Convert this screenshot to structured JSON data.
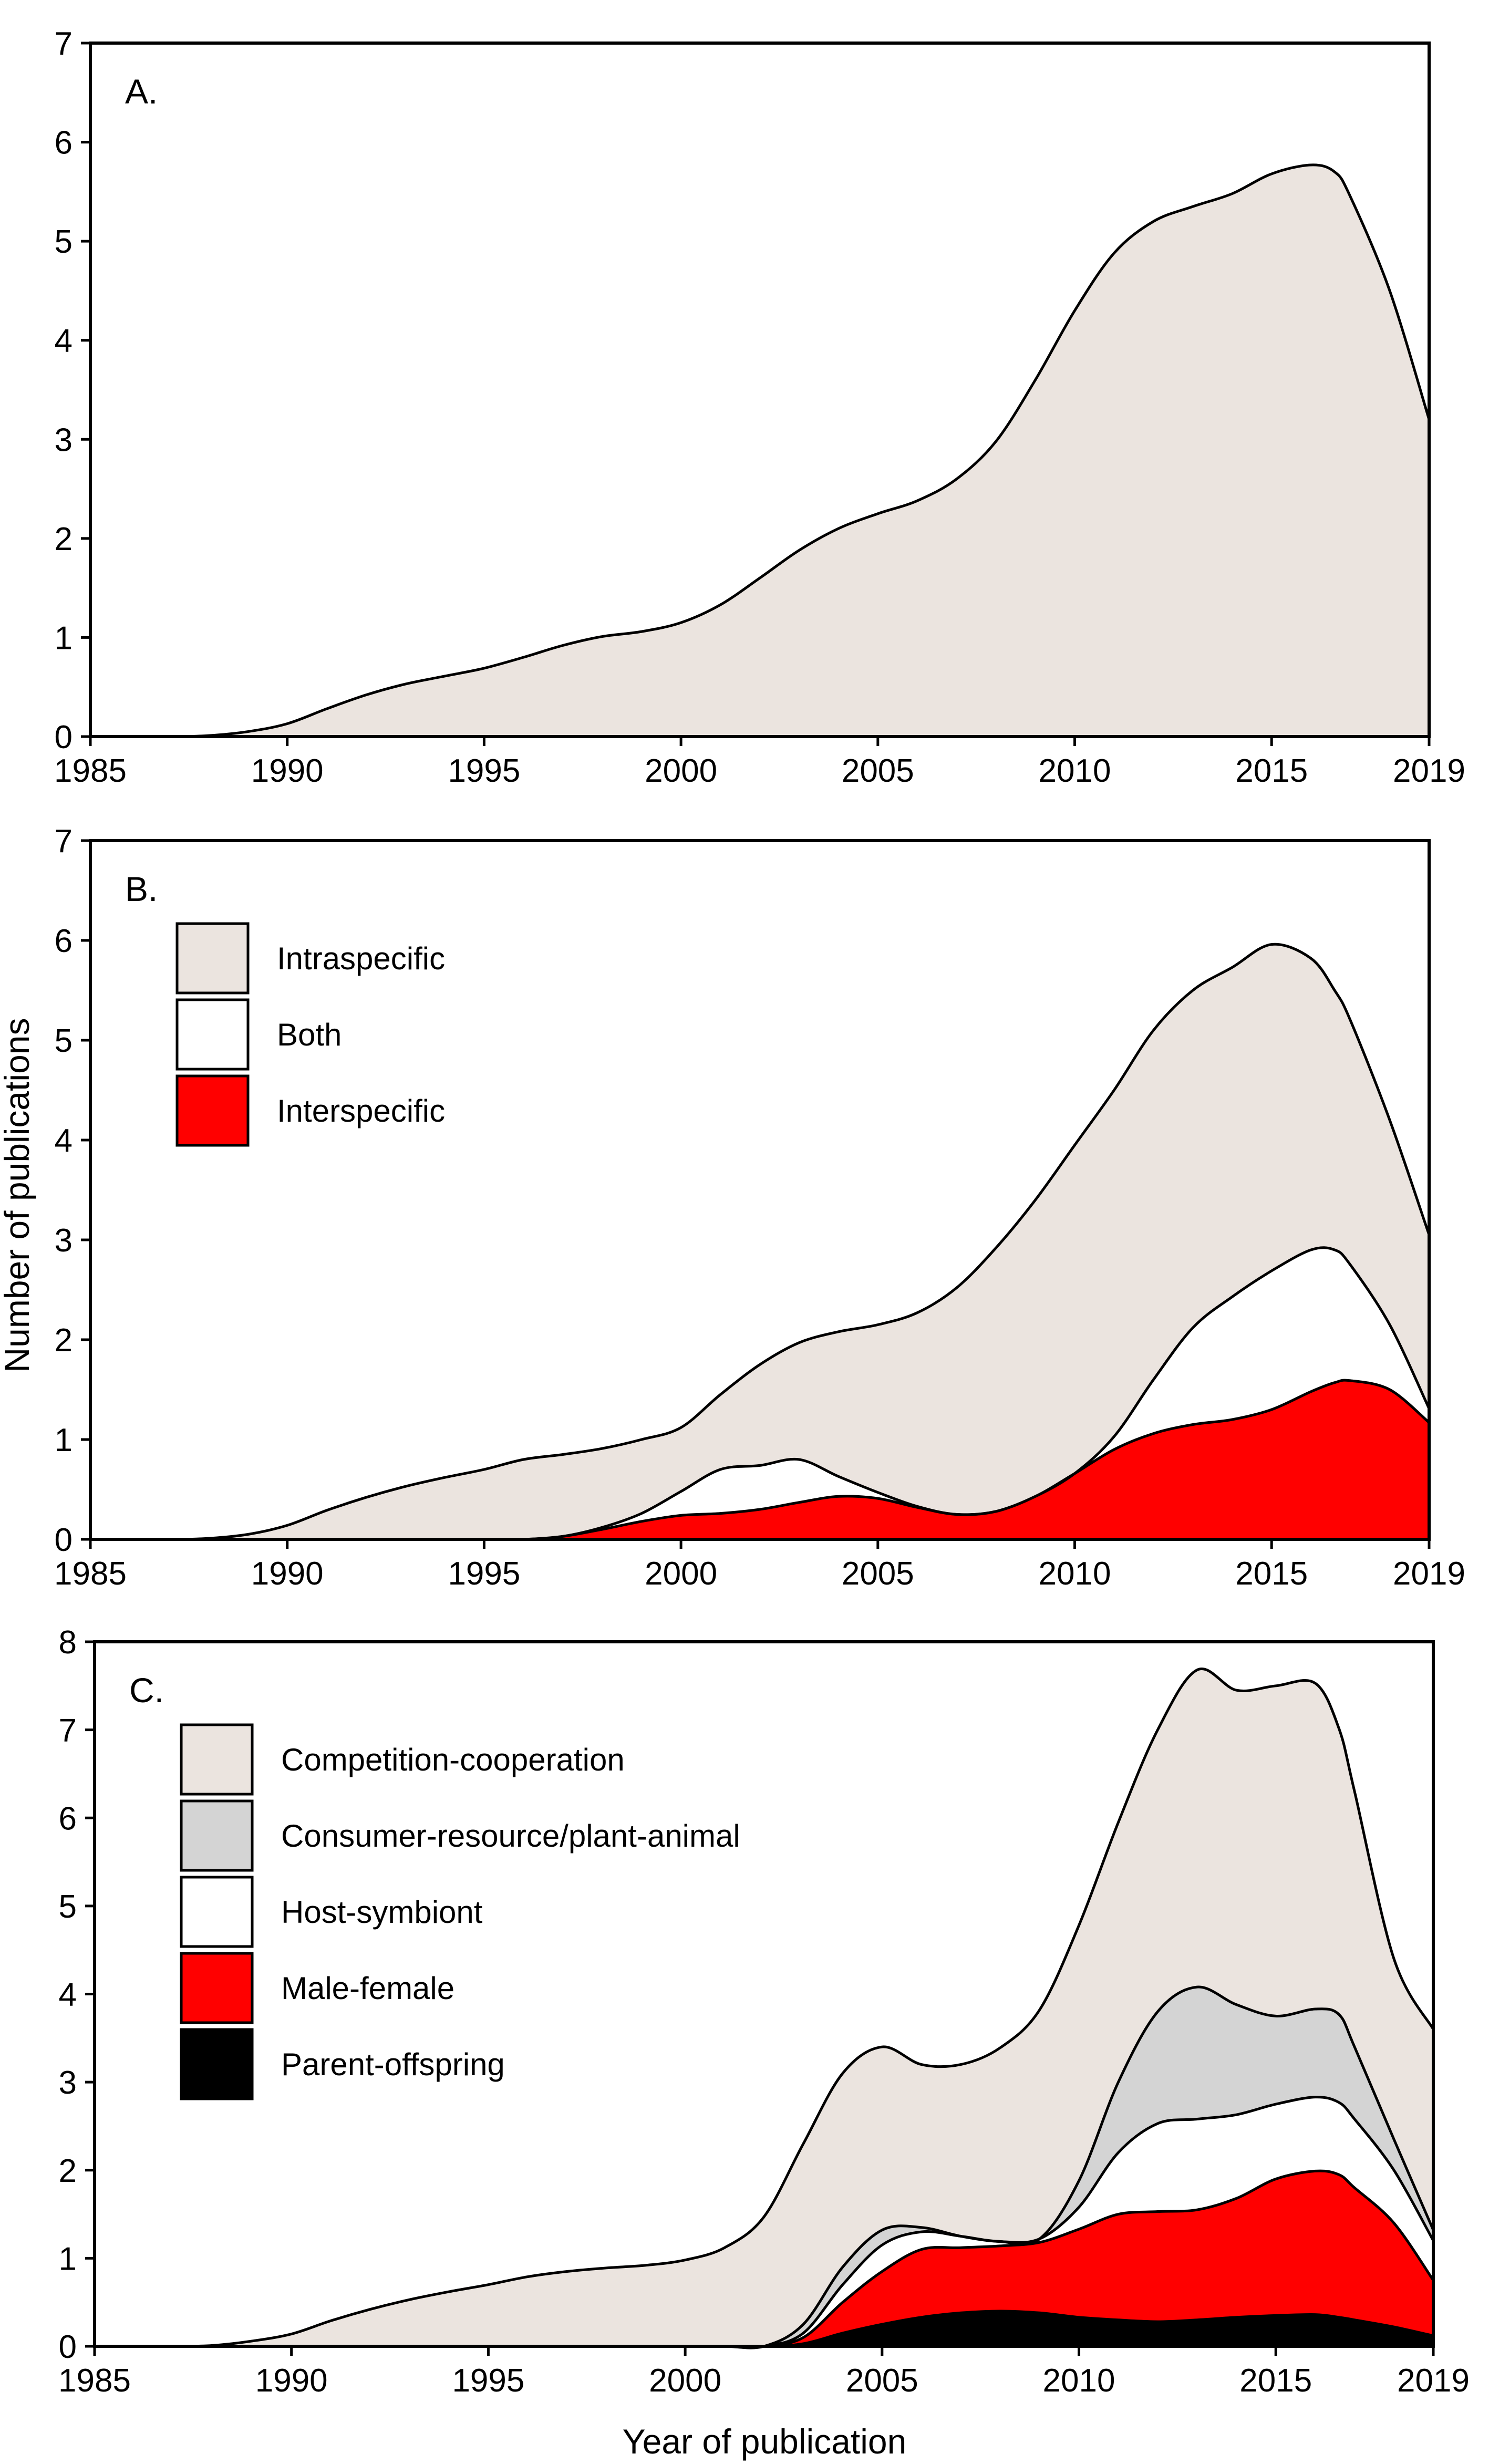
{
  "colors": {
    "Intraspecific": "#ebe4df",
    "Both": "#ffffff",
    "Interspecific": "#ff0000",
    "Competition-cooperation": "#ebe4df",
    "Consumer-resource/plant-animal": "#d4d4d4",
    "Host-symbiont": "#ffffff",
    "Male-female": "#ff0000",
    "Parent-offspring": "#000000"
  },
  "chart_data": [
    {
      "type": "area",
      "panel": "A.",
      "xlim": [
        1985,
        2019
      ],
      "ylim": [
        0,
        7
      ],
      "xticks": [
        1985,
        1990,
        1995,
        2000,
        2005,
        2010,
        2015,
        2019
      ],
      "yticks": [
        0,
        1,
        2,
        3,
        4,
        5,
        6,
        7
      ],
      "xlabel": "",
      "ylabel": "",
      "x": [
        1985,
        1987,
        1988,
        1989,
        1990,
        1991,
        1992,
        1993,
        1994,
        1995,
        1996,
        1997,
        1998,
        1999,
        2000,
        2001,
        2002,
        2003,
        2004,
        2005,
        2006,
        2007,
        2008,
        2009,
        2010,
        2011,
        2012,
        2013,
        2014,
        2015,
        2016,
        2016.6,
        2017,
        2018,
        2019
      ],
      "series": [
        {
          "name": "",
          "color_key": "Intraspecific",
          "values": [
            0,
            0,
            0.01,
            0.05,
            0.13,
            0.28,
            0.42,
            0.53,
            0.61,
            0.69,
            0.8,
            0.92,
            1.01,
            1.06,
            1.15,
            1.33,
            1.6,
            1.88,
            2.1,
            2.25,
            2.38,
            2.6,
            2.98,
            3.6,
            4.3,
            4.88,
            5.2,
            5.35,
            5.48,
            5.68,
            5.77,
            5.7,
            5.45,
            4.5,
            3.2
          ]
        }
      ]
    },
    {
      "type": "area",
      "panel": "B.",
      "stacked": true,
      "xlim": [
        1985,
        2019
      ],
      "ylim": [
        0,
        7
      ],
      "xticks": [
        1985,
        1990,
        1995,
        2000,
        2005,
        2010,
        2015,
        2019
      ],
      "yticks": [
        0,
        1,
        2,
        3,
        4,
        5,
        6,
        7
      ],
      "xlabel": "",
      "ylabel": "Number of publications",
      "legend": [
        "Intraspecific",
        "Both",
        "Interspecific"
      ],
      "legend_position": "top-left",
      "x": [
        1985,
        1987,
        1988,
        1989,
        1990,
        1991,
        1992,
        1993,
        1994,
        1995,
        1996,
        1997,
        1998,
        1999,
        2000,
        2001,
        2002,
        2003,
        2004,
        2005,
        2006,
        2007,
        2008,
        2009,
        2010,
        2011,
        2012,
        2013,
        2014,
        2015,
        2016,
        2016.6,
        2017,
        2018,
        2019
      ],
      "series": [
        {
          "name": "Interspecific",
          "values": [
            0,
            0,
            0,
            0,
            0,
            0,
            0,
            0,
            0,
            0,
            0,
            0.03,
            0.1,
            0.18,
            0.24,
            0.26,
            0.3,
            0.37,
            0.43,
            0.41,
            0.32,
            0.25,
            0.28,
            0.43,
            0.66,
            0.9,
            1.06,
            1.15,
            1.2,
            1.3,
            1.48,
            1.57,
            1.59,
            1.5,
            1.17
          ]
        },
        {
          "name": "Both",
          "values": [
            0,
            0,
            0,
            0,
            0,
            0,
            0,
            0,
            0,
            0,
            0,
            0,
            0.02,
            0.08,
            0.24,
            0.44,
            0.44,
            0.43,
            0.2,
            0.06,
            0.01,
            0,
            0,
            0,
            0,
            0.13,
            0.54,
            0.97,
            1.23,
            1.39,
            1.42,
            1.33,
            1.16,
            0.65,
            0.14
          ]
        },
        {
          "name": "Intraspecific",
          "values": [
            0,
            0,
            0.01,
            0.05,
            0.14,
            0.29,
            0.42,
            0.53,
            0.62,
            0.7,
            0.8,
            0.82,
            0.79,
            0.74,
            0.64,
            0.75,
            1.01,
            1.17,
            1.45,
            1.68,
            1.94,
            2.27,
            2.64,
            2.97,
            3.29,
            3.47,
            3.5,
            3.38,
            3.3,
            3.27,
            2.92,
            2.6,
            2.45,
            2.05,
            1.74
          ]
        }
      ],
      "totals": [
        0,
        0,
        0.01,
        0.05,
        0.14,
        0.29,
        0.42,
        0.53,
        0.62,
        0.7,
        0.8,
        0.85,
        0.91,
        1.0,
        1.12,
        1.45,
        1.75,
        1.97,
        2.08,
        2.15,
        2.27,
        2.52,
        2.92,
        3.4,
        3.95,
        4.5,
        5.1,
        5.5,
        5.73,
        5.96,
        5.82,
        5.5,
        5.2,
        4.2,
        3.05
      ]
    },
    {
      "type": "area",
      "panel": "C.",
      "stacked": true,
      "xlim": [
        1985,
        2019
      ],
      "ylim": [
        0,
        8
      ],
      "xticks": [
        1985,
        1990,
        1995,
        2000,
        2005,
        2010,
        2015,
        2019
      ],
      "yticks": [
        0,
        1,
        2,
        3,
        4,
        5,
        6,
        7,
        8
      ],
      "xlabel": "Year of publication",
      "ylabel": "",
      "legend": [
        "Competition-cooperation",
        "Consumer-resource/plant-animal",
        "Host-symbiont",
        "Male-female",
        "Parent-offspring"
      ],
      "legend_position": "top-left",
      "x": [
        1985,
        1987,
        1988,
        1989,
        1990,
        1991,
        1992,
        1993,
        1994,
        1995,
        1996,
        1997,
        1998,
        1999,
        2000,
        2001,
        2002,
        2003,
        2004,
        2005,
        2006,
        2007,
        2008,
        2009,
        2010,
        2011,
        2012,
        2013,
        2014,
        2015,
        2016,
        2016.6,
        2017,
        2018,
        2019
      ],
      "series": [
        {
          "name": "Parent-offspring",
          "values": [
            0,
            0,
            0,
            0,
            0,
            0,
            0,
            0,
            0,
            0,
            0,
            0,
            0,
            0,
            0,
            0,
            0,
            0.03,
            0.15,
            0.25,
            0.33,
            0.38,
            0.4,
            0.38,
            0.33,
            0.3,
            0.28,
            0.3,
            0.33,
            0.35,
            0.36,
            0.33,
            0.3,
            0.22,
            0.12
          ]
        },
        {
          "name": "Male-female",
          "values": [
            0,
            0,
            0,
            0,
            0,
            0,
            0,
            0,
            0,
            0,
            0,
            0,
            0,
            0,
            0,
            0,
            0,
            0.07,
            0.35,
            0.6,
            0.77,
            0.74,
            0.74,
            0.8,
            1.0,
            1.2,
            1.25,
            1.25,
            1.35,
            1.55,
            1.63,
            1.62,
            1.5,
            1.18,
            0.63
          ]
        },
        {
          "name": "Host-symbiont",
          "values": [
            0,
            0,
            0,
            0,
            0,
            0,
            0,
            0,
            0,
            0,
            0,
            0,
            0,
            0,
            0,
            0,
            0,
            0.05,
            0.2,
            0.3,
            0.2,
            0.13,
            0.05,
            0.04,
            0.25,
            0.7,
            1.0,
            1.03,
            0.95,
            0.85,
            0.84,
            0.82,
            0.78,
            0.6,
            0.45
          ]
        },
        {
          "name": "Consumer-resource/plant-animal",
          "values": [
            0,
            0,
            0,
            0,
            0,
            0,
            0,
            0,
            0,
            0,
            0,
            0,
            0,
            0,
            0,
            0,
            0,
            0.1,
            0.2,
            0.17,
            0.05,
            0,
            0,
            0,
            0.3,
            0.8,
            1.27,
            1.5,
            1.25,
            1.0,
            1.0,
            1.0,
            0.82,
            0.35,
            0.12
          ]
        },
        {
          "name": "Competition-cooperation",
          "values": [
            0,
            0,
            0.01,
            0.06,
            0.14,
            0.29,
            0.42,
            0.53,
            0.62,
            0.7,
            0.79,
            0.85,
            0.89,
            0.92,
            0.98,
            1.12,
            1.47,
            2.05,
            2.2,
            2.08,
            1.85,
            1.95,
            2.2,
            2.6,
            2.9,
            2.95,
            3.2,
            3.6,
            3.57,
            3.75,
            3.7,
            3.25,
            2.9,
            2.05,
            2.28
          ]
        }
      ],
      "totals": [
        0,
        0,
        0.01,
        0.06,
        0.14,
        0.29,
        0.42,
        0.53,
        0.62,
        0.7,
        0.79,
        0.85,
        0.89,
        0.92,
        0.98,
        1.12,
        1.47,
        2.3,
        3.1,
        3.4,
        3.2,
        3.2,
        3.39,
        3.82,
        4.78,
        5.95,
        7.0,
        7.68,
        7.45,
        7.5,
        7.53,
        7.02,
        6.3,
        4.4,
        3.6
      ]
    }
  ]
}
